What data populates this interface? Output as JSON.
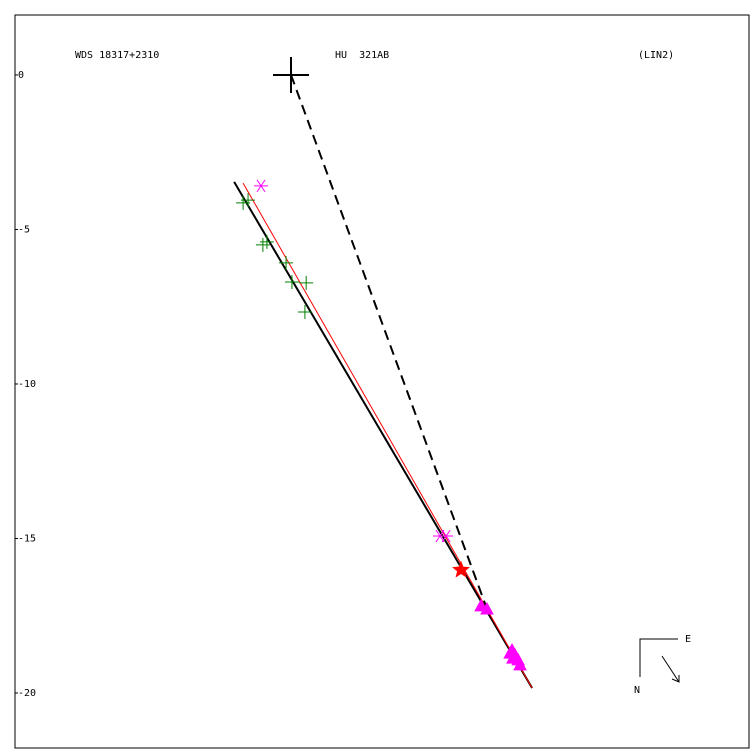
{
  "chart_data": {
    "type": "scatter",
    "labels": {
      "left": "WDS 18317+2310",
      "center": "HU  321AB",
      "right": "(LIN2)"
    },
    "compass": {
      "east": "E",
      "north": "N"
    },
    "xlim": [
      -8.93,
      14.85
    ],
    "ylim": [
      -21.78,
      1.94
    ],
    "yticks": [
      0,
      -5,
      -10,
      -15,
      -20
    ],
    "primary": {
      "x": 0,
      "y": 0,
      "color": "#000000"
    },
    "series": [
      {
        "marker": "plus",
        "color": "#008000",
        "x": [
          -1.55,
          -1.39,
          -0.91,
          -0.78,
          -0.16,
          0.03,
          0.49,
          0.45
        ],
        "values": [
          -4.14,
          -4.05,
          -5.5,
          -5.4,
          -6.08,
          -6.7,
          -6.73,
          -7.67
        ]
      },
      {
        "marker": "asterisk",
        "color": "#ff00ff",
        "x": [
          -0.97,
          4.82,
          5.02
        ],
        "values": [
          -3.59,
          -14.92,
          -14.92
        ]
      },
      {
        "marker": "star",
        "color": "#ff0000",
        "x": [
          5.5
        ],
        "values": [
          -16.02
        ]
      },
      {
        "marker": "triangle",
        "color": "#ff00ff",
        "x": [
          6.15,
          6.34,
          7.15,
          7.25,
          7.35,
          7.41,
          7.18,
          7.09
        ],
        "values": [
          -17.18,
          -17.28,
          -18.61,
          -18.77,
          -18.93,
          -19.09,
          -18.87,
          -18.71
        ]
      }
    ],
    "lines": [
      {
        "style": "solid",
        "color": "#000000",
        "width": 2,
        "x": [
          -1.84,
          7.8
        ],
        "values": [
          -3.46,
          -19.84
        ]
      },
      {
        "style": "solid",
        "color": "#ff0000",
        "width": 1,
        "x": [
          -1.55,
          7.8
        ],
        "values": [
          -3.5,
          -19.84
        ]
      },
      {
        "style": "dashed",
        "color": "#000000",
        "width": 2,
        "x": [
          0,
          6.34
        ],
        "values": [
          0,
          -17.28
        ]
      }
    ]
  }
}
